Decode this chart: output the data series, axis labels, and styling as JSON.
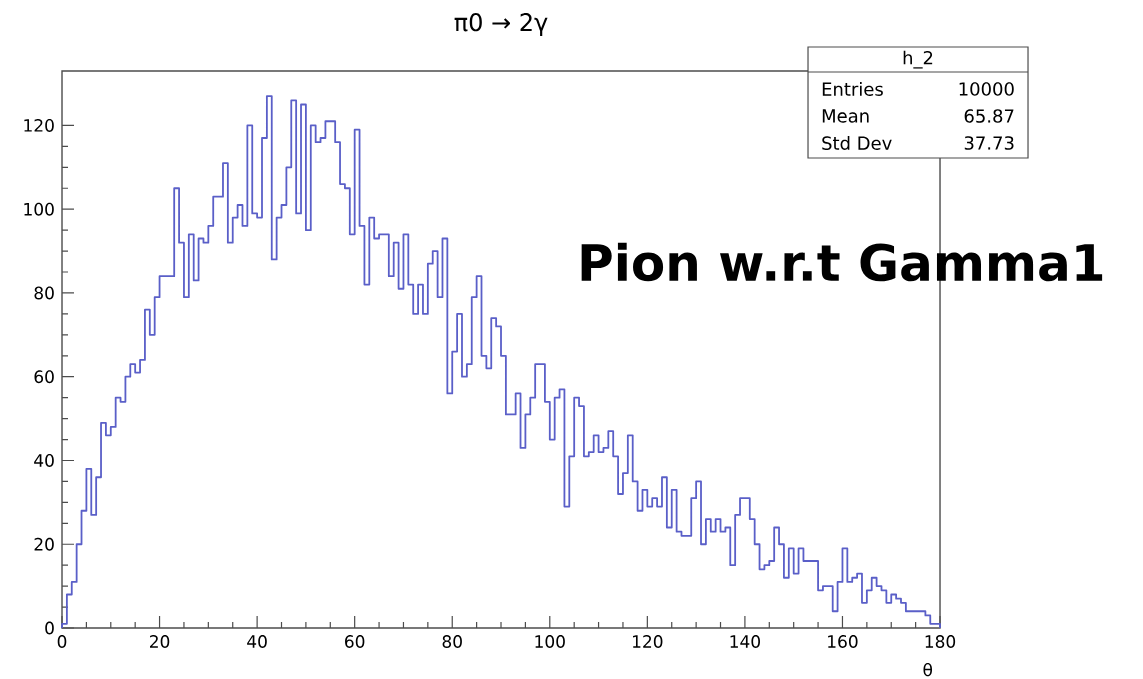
{
  "chart_data": {
    "type": "histogram",
    "title": "π0 → 2γ",
    "xlabel": "θ",
    "bins": [
      0,
      1,
      2,
      3,
      4,
      5,
      6,
      7,
      8,
      9,
      10,
      11,
      12,
      13,
      14,
      15,
      16,
      17,
      18,
      19,
      20,
      21,
      22,
      23,
      24,
      25,
      26,
      27,
      28,
      29,
      30,
      31,
      32,
      33,
      34,
      35,
      36,
      37,
      38,
      39,
      40,
      41,
      42,
      43,
      44,
      45,
      46,
      47,
      48,
      49,
      50,
      51,
      52,
      53,
      54,
      55,
      56,
      57,
      58,
      59,
      60,
      61,
      62,
      63,
      64,
      65,
      66,
      67,
      68,
      69,
      70,
      71,
      72,
      73,
      74,
      75,
      76,
      77,
      78,
      79,
      80,
      81,
      82,
      83,
      84,
      85,
      86,
      87,
      88,
      89,
      90,
      91,
      92,
      93,
      94,
      95,
      96,
      97,
      98,
      99,
      100,
      101,
      102,
      103,
      104,
      105,
      106,
      107,
      108,
      109,
      110,
      111,
      112,
      113,
      114,
      115,
      116,
      117,
      118,
      119,
      120,
      121,
      122,
      123,
      124,
      125,
      126,
      127,
      128,
      129,
      130,
      131,
      132,
      133,
      134,
      135,
      136,
      137,
      138,
      139,
      140,
      141,
      142,
      143,
      144,
      145,
      146,
      147,
      148,
      149,
      150,
      151,
      152,
      153,
      154,
      155,
      156,
      157,
      158,
      159,
      160,
      161,
      162,
      163,
      164,
      165,
      166,
      167,
      168,
      169,
      170,
      171,
      172,
      173,
      174,
      175,
      176,
      177,
      178,
      179,
      180
    ],
    "values": [
      1,
      8,
      11,
      20,
      28,
      38,
      27,
      36,
      49,
      46,
      48,
      55,
      54,
      60,
      63,
      61,
      64,
      76,
      70,
      79,
      84,
      84,
      84,
      105,
      92,
      79,
      94,
      83,
      93,
      92,
      96,
      103,
      103,
      111,
      92,
      98,
      101,
      96,
      120,
      99,
      98,
      117,
      127,
      88,
      98,
      101,
      110,
      126,
      99,
      125,
      95,
      120,
      116,
      117,
      121,
      121,
      116,
      106,
      105,
      94,
      119,
      96,
      82,
      98,
      93,
      94,
      94,
      84,
      92,
      81,
      94,
      82,
      75,
      82,
      75,
      87,
      90,
      79,
      93,
      56,
      66,
      75,
      60,
      63,
      79,
      84,
      65,
      62,
      74,
      72,
      65,
      51,
      51,
      56,
      43,
      51,
      55,
      63,
      63,
      54,
      45,
      55,
      57,
      29,
      41,
      55,
      53,
      41,
      42,
      46,
      42,
      43,
      47,
      41,
      32,
      37,
      46,
      35,
      28,
      33,
      29,
      31,
      29,
      36,
      24,
      33,
      23,
      22,
      22,
      31,
      35,
      20,
      26,
      23,
      26,
      23,
      24,
      15,
      27,
      31,
      31,
      26,
      20,
      14,
      15,
      16,
      24,
      20,
      12,
      19,
      13,
      19,
      16,
      16,
      16,
      9,
      10,
      10,
      4,
      11,
      19,
      11,
      12,
      13,
      6,
      9,
      12,
      10,
      9,
      6,
      8,
      7,
      6,
      4,
      4,
      4,
      4,
      3,
      1,
      1
    ],
    "color": "#5a5fc8",
    "xlim": [
      0,
      180
    ],
    "ylim": [
      0,
      133
    ],
    "xticks": [
      0,
      20,
      40,
      60,
      80,
      100,
      120,
      140,
      160,
      180
    ],
    "yticks": [
      0,
      20,
      40,
      60,
      80,
      100,
      120
    ],
    "grid": false,
    "annotations": [
      "h_2",
      "Entries",
      "10000",
      "Mean",
      "65.87",
      "Std Dev",
      "37.73",
      "Pion w.r.t Gamma1"
    ]
  }
}
